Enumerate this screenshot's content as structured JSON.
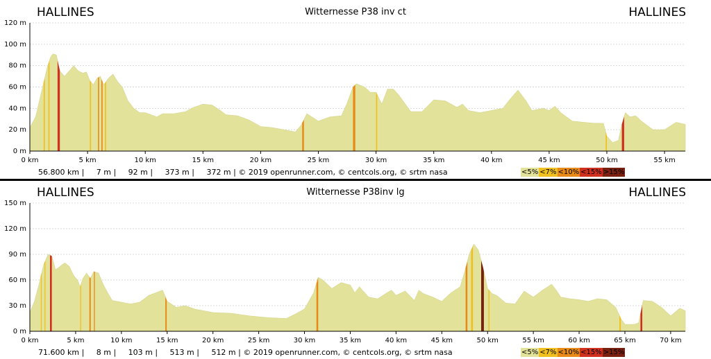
{
  "legend": [
    {
      "label": "<5%",
      "color": "#e2e29a"
    },
    {
      "label": "<7%",
      "color": "#f0c020"
    },
    {
      "label": "<10%",
      "color": "#e88a18"
    },
    {
      "label": "<15%",
      "color": "#d03020"
    },
    {
      "label": ">15%",
      "color": "#7a2010"
    }
  ],
  "chart_data": [
    {
      "type": "area",
      "start": "HALLINES",
      "end": "HALLINES",
      "title": "Witternesse P38 inv ct",
      "stats": "56.800 km |     7 m |     92 m |     373 m |     372 m | © 2019 openrunner.com, © centcols.org, © srtm nasa",
      "xlim": [
        0,
        56.8
      ],
      "ylim": [
        0,
        120
      ],
      "xticks": [
        0,
        5,
        10,
        15,
        20,
        25,
        30,
        35,
        40,
        45,
        50,
        55
      ],
      "yticks": [
        0,
        20,
        40,
        60,
        80,
        100,
        120
      ],
      "xunit": "km",
      "yunit": "m",
      "profile": [
        [
          0,
          22
        ],
        [
          0.5,
          32
        ],
        [
          1,
          55
        ],
        [
          1.5,
          78
        ],
        [
          1.8,
          88
        ],
        [
          2,
          91
        ],
        [
          2.3,
          90
        ],
        [
          2.6,
          75
        ],
        [
          3,
          70
        ],
        [
          3.5,
          76
        ],
        [
          3.8,
          80
        ],
        [
          4.2,
          75
        ],
        [
          4.6,
          73
        ],
        [
          4.9,
          74
        ],
        [
          5.2,
          66
        ],
        [
          5.5,
          62
        ],
        [
          5.8,
          68
        ],
        [
          6.1,
          70
        ],
        [
          6.4,
          62
        ],
        [
          6.8,
          68
        ],
        [
          7.2,
          72
        ],
        [
          7.6,
          65
        ],
        [
          8,
          60
        ],
        [
          8.5,
          47
        ],
        [
          9,
          40
        ],
        [
          9.5,
          36
        ],
        [
          10,
          36
        ],
        [
          11,
          32
        ],
        [
          11.5,
          35
        ],
        [
          12.5,
          35
        ],
        [
          13.5,
          37
        ],
        [
          14,
          40
        ],
        [
          15,
          44
        ],
        [
          15.8,
          43
        ],
        [
          16.5,
          38
        ],
        [
          17,
          34
        ],
        [
          18,
          33
        ],
        [
          19,
          29
        ],
        [
          20,
          23
        ],
        [
          21,
          22
        ],
        [
          22,
          20
        ],
        [
          23,
          18
        ],
        [
          23.5,
          24
        ],
        [
          24,
          35
        ],
        [
          25,
          28
        ],
        [
          26,
          32
        ],
        [
          27,
          33
        ],
        [
          27.5,
          45
        ],
        [
          28,
          60
        ],
        [
          28.3,
          63
        ],
        [
          29,
          60
        ],
        [
          29.5,
          55
        ],
        [
          30,
          55
        ],
        [
          30.5,
          44
        ],
        [
          31,
          58
        ],
        [
          31.5,
          58
        ],
        [
          32,
          52
        ],
        [
          33,
          37
        ],
        [
          34,
          37
        ],
        [
          35,
          48
        ],
        [
          36,
          47
        ],
        [
          37,
          41
        ],
        [
          37.5,
          44
        ],
        [
          38,
          38
        ],
        [
          39,
          36
        ],
        [
          40,
          38
        ],
        [
          41,
          40
        ],
        [
          41.5,
          47
        ],
        [
          42.3,
          57
        ],
        [
          43,
          47
        ],
        [
          43.5,
          38
        ],
        [
          44.5,
          40
        ],
        [
          45,
          38
        ],
        [
          45.5,
          42
        ],
        [
          46,
          36
        ],
        [
          47,
          28
        ],
        [
          48,
          27
        ],
        [
          49,
          26
        ],
        [
          49.7,
          26
        ],
        [
          50,
          14
        ],
        [
          50.5,
          8
        ],
        [
          51,
          10
        ],
        [
          51.3,
          25
        ],
        [
          51.6,
          36
        ],
        [
          52,
          32
        ],
        [
          52.5,
          33
        ],
        [
          53,
          28
        ],
        [
          54,
          20
        ],
        [
          55,
          20
        ],
        [
          56,
          27
        ],
        [
          56.8,
          25
        ]
      ],
      "steep_bands": [
        {
          "from": 1.2,
          "to": 1.3,
          "color": "#f0c020"
        },
        {
          "from": 1.6,
          "to": 1.7,
          "color": "#f0c020"
        },
        {
          "from": 2.4,
          "to": 2.6,
          "color": "#d03020"
        },
        {
          "from": 5.2,
          "to": 5.3,
          "color": "#f0c020"
        },
        {
          "from": 5.9,
          "to": 6.0,
          "color": "#e88a18"
        },
        {
          "from": 6.2,
          "to": 6.3,
          "color": "#e88a18"
        },
        {
          "from": 6.5,
          "to": 6.6,
          "color": "#f0c020"
        },
        {
          "from": 23.6,
          "to": 23.75,
          "color": "#e88a18"
        },
        {
          "from": 28.0,
          "to": 28.2,
          "color": "#e88a18"
        },
        {
          "from": 30.0,
          "to": 30.1,
          "color": "#f0c020"
        },
        {
          "from": 49.9,
          "to": 50.0,
          "color": "#f0c020"
        },
        {
          "from": 51.3,
          "to": 51.5,
          "color": "#d03020"
        }
      ]
    },
    {
      "type": "area",
      "start": "HALLINES",
      "end": "HALLINES",
      "title": "Witternesse P38inv lg",
      "stats": "71.600 km |     8 m |     103 m |     513 m |     512 m | © 2019 openrunner.com, © centcols.org, © srtm nasa",
      "xlim": [
        0,
        71.6
      ],
      "ylim": [
        0,
        150
      ],
      "xticks": [
        0,
        5,
        10,
        15,
        20,
        25,
        30,
        35,
        40,
        45,
        50,
        55,
        60,
        65,
        70
      ],
      "yticks": [
        0,
        30,
        60,
        90,
        120,
        150
      ],
      "xunit": "km",
      "yunit": "m",
      "profile": [
        [
          0,
          22
        ],
        [
          0.5,
          35
        ],
        [
          1,
          55
        ],
        [
          1.5,
          78
        ],
        [
          2,
          90
        ],
        [
          2.4,
          88
        ],
        [
          2.8,
          72
        ],
        [
          3.2,
          75
        ],
        [
          3.8,
          80
        ],
        [
          4.3,
          76
        ],
        [
          4.8,
          65
        ],
        [
          5.2,
          60
        ],
        [
          5.5,
          52
        ],
        [
          5.8,
          62
        ],
        [
          6.2,
          68
        ],
        [
          6.6,
          62
        ],
        [
          7,
          70
        ],
        [
          7.5,
          68
        ],
        [
          8,
          55
        ],
        [
          8.5,
          45
        ],
        [
          9,
          36
        ],
        [
          10,
          34
        ],
        [
          11,
          32
        ],
        [
          12,
          34
        ],
        [
          13,
          42
        ],
        [
          14,
          46
        ],
        [
          14.5,
          48
        ],
        [
          15,
          35
        ],
        [
          16,
          28
        ],
        [
          17,
          30
        ],
        [
          18,
          26
        ],
        [
          19,
          24
        ],
        [
          20,
          22
        ],
        [
          22,
          21
        ],
        [
          24,
          18
        ],
        [
          26,
          16
        ],
        [
          28,
          15
        ],
        [
          29,
          20
        ],
        [
          30,
          26
        ],
        [
          31,
          45
        ],
        [
          31.5,
          63
        ],
        [
          32,
          60
        ],
        [
          33,
          50
        ],
        [
          34,
          57
        ],
        [
          35,
          54
        ],
        [
          35.5,
          45
        ],
        [
          36,
          52
        ],
        [
          37,
          40
        ],
        [
          38,
          38
        ],
        [
          39,
          45
        ],
        [
          39.5,
          48
        ],
        [
          40,
          42
        ],
        [
          41,
          47
        ],
        [
          42,
          36
        ],
        [
          42.5,
          48
        ],
        [
          43,
          44
        ],
        [
          44,
          40
        ],
        [
          45,
          35
        ],
        [
          46,
          45
        ],
        [
          47,
          52
        ],
        [
          47.5,
          70
        ],
        [
          48,
          90
        ],
        [
          48.5,
          102
        ],
        [
          49,
          95
        ],
        [
          49.5,
          75
        ],
        [
          50,
          50
        ],
        [
          50.5,
          44
        ],
        [
          51,
          42
        ],
        [
          52,
          33
        ],
        [
          53,
          32
        ],
        [
          54,
          47
        ],
        [
          55,
          40
        ],
        [
          56,
          48
        ],
        [
          57,
          55
        ],
        [
          57.5,
          48
        ],
        [
          58,
          40
        ],
        [
          59,
          38
        ],
        [
          60,
          37
        ],
        [
          61,
          35
        ],
        [
          62,
          38
        ],
        [
          63,
          37
        ],
        [
          64,
          28
        ],
        [
          64.6,
          14
        ],
        [
          65,
          8
        ],
        [
          66,
          8
        ],
        [
          66.5,
          10
        ],
        [
          67,
          36
        ],
        [
          68,
          35
        ],
        [
          69,
          28
        ],
        [
          70,
          18
        ],
        [
          71,
          27
        ],
        [
          71.6,
          24
        ]
      ],
      "steep_bands": [
        {
          "from": 1.2,
          "to": 1.3,
          "color": "#f0c020"
        },
        {
          "from": 1.6,
          "to": 1.7,
          "color": "#f0c020"
        },
        {
          "from": 2.2,
          "to": 2.4,
          "color": "#d03020"
        },
        {
          "from": 5.5,
          "to": 5.6,
          "color": "#f0c020"
        },
        {
          "from": 6.5,
          "to": 6.65,
          "color": "#e88a18"
        },
        {
          "from": 7.0,
          "to": 7.1,
          "color": "#e88a18"
        },
        {
          "from": 14.8,
          "to": 14.95,
          "color": "#e88a18"
        },
        {
          "from": 31.3,
          "to": 31.5,
          "color": "#e88a18"
        },
        {
          "from": 47.6,
          "to": 47.8,
          "color": "#e88a18"
        },
        {
          "from": 48.2,
          "to": 48.4,
          "color": "#f0c020"
        },
        {
          "from": 49.3,
          "to": 49.6,
          "color": "#7a2010"
        },
        {
          "from": 50.1,
          "to": 50.2,
          "color": "#f0c020"
        },
        {
          "from": 64.4,
          "to": 64.55,
          "color": "#f0c020"
        },
        {
          "from": 66.7,
          "to": 66.9,
          "color": "#d03020"
        }
      ]
    }
  ]
}
